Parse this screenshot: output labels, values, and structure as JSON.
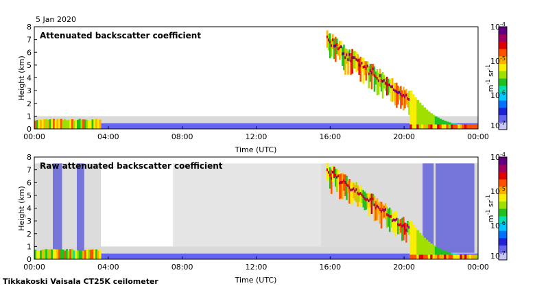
{
  "date_label": "5 Jan 2020",
  "caption": "Tikkakoski Vaisala CT25K ceilometer",
  "colors": {
    "colormap": [
      "#c8c8f8",
      "#6464f0",
      "#2020d8",
      "#0070ff",
      "#00c8ff",
      "#00e0b0",
      "#20c020",
      "#a0e000",
      "#f8f000",
      "#ffb000",
      "#ff5000",
      "#e00000",
      "#a00060",
      "#600080"
    ],
    "noise": "#d0d0d0",
    "frame": "#000000"
  },
  "chart_data": [
    {
      "type": "heatmap",
      "title": "Attenuated backscatter coefficient",
      "xlabel": "Time (UTC)",
      "ylabel": "Height (km)",
      "x_ticks": [
        "00:00",
        "04:00",
        "08:00",
        "12:00",
        "16:00",
        "20:00",
        "00:00"
      ],
      "y_ticks": [
        "0",
        "1",
        "2",
        "3",
        "4",
        "5",
        "6",
        "7",
        "8"
      ],
      "xlim_hours": [
        0,
        24
      ],
      "ylim": [
        0,
        8
      ],
      "colorbar": {
        "label": "m-1 sr-1",
        "scale": "log",
        "tick_labels": [
          "10-7",
          "10-6",
          "10-5",
          "10-4"
        ],
        "range": [
          1e-07,
          0.0001
        ]
      },
      "features": [
        {
          "name": "boundary layer",
          "t_start_h": 0.0,
          "t_end_h": 3.6,
          "top_km": 0.8,
          "strength": 0.75
        },
        {
          "name": "cloud band",
          "t_start_h": 15.8,
          "t_end_h": 20.3,
          "top_start_km": 7.5,
          "top_end_km": 2.7,
          "strength": 0.65
        },
        {
          "name": "descending cloud",
          "t_start_h": 20.3,
          "t_end_h": 24.0,
          "top_start_km": 2.7,
          "top_end_km": 0.3,
          "strength": 0.6
        }
      ]
    },
    {
      "type": "heatmap",
      "title": "Raw attenuated backscatter coefficient",
      "xlabel": "Time (UTC)",
      "ylabel": "Height (km)",
      "x_ticks": [
        "00:00",
        "04:00",
        "08:00",
        "12:00",
        "16:00",
        "20:00",
        "00:00"
      ],
      "y_ticks": [
        "0",
        "1",
        "2",
        "3",
        "4",
        "5",
        "6",
        "7",
        "8"
      ],
      "xlim_hours": [
        0,
        24
      ],
      "ylim": [
        0,
        8
      ],
      "colorbar": {
        "label": "m-1 sr-1",
        "scale": "log",
        "tick_labels": [
          "10-7",
          "10-6",
          "10-5",
          "10-4"
        ],
        "range": [
          1e-07,
          0.0001
        ]
      },
      "features": [
        {
          "name": "boundary layer",
          "t_start_h": 0.0,
          "t_end_h": 3.6,
          "top_km": 0.8,
          "strength": 0.75
        },
        {
          "name": "cloud band",
          "t_start_h": 15.8,
          "t_end_h": 20.3,
          "top_start_km": 7.5,
          "top_end_km": 2.7,
          "strength": 0.65
        },
        {
          "name": "descending cloud",
          "t_start_h": 20.3,
          "t_end_h": 24.0,
          "top_start_km": 2.7,
          "top_end_km": 0.3,
          "strength": 0.6
        },
        {
          "name": "noise columns",
          "t_start_h": 21.0,
          "t_end_h": 23.8,
          "strength": 0.3
        }
      ]
    }
  ]
}
